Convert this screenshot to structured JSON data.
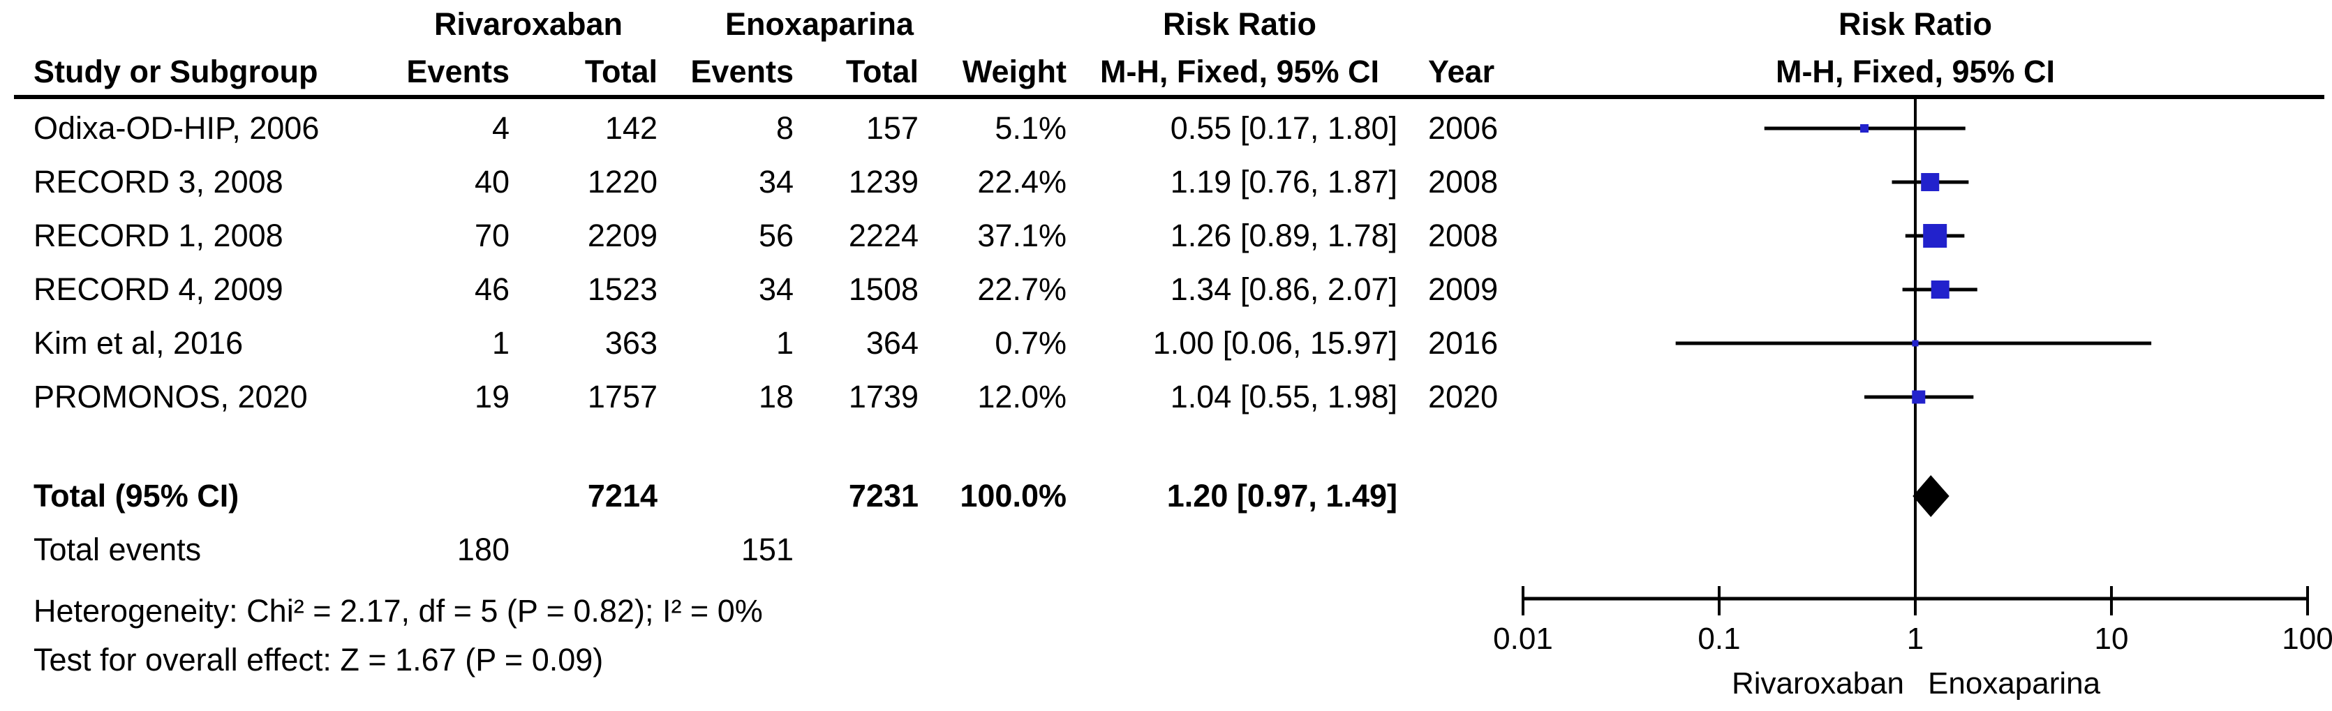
{
  "headers": {
    "group1": "Rivaroxaban",
    "group2": "Enoxaparina",
    "risk_ratio": "Risk Ratio",
    "study": "Study or Subgroup",
    "events": "Events",
    "total": "Total",
    "weight": "Weight",
    "mh_fixed": "M-H, Fixed, 95% CI",
    "year": "Year"
  },
  "studies": [
    {
      "name": "Odixa-OD-HIP, 2006",
      "events1": "4",
      "total1": "142",
      "events2": "8",
      "total2": "157",
      "weight": "5.1%",
      "ci": "0.55 [0.17, 1.80]",
      "year": "2006"
    },
    {
      "name": "RECORD 3, 2008",
      "events1": "40",
      "total1": "1220",
      "events2": "34",
      "total2": "1239",
      "weight": "22.4%",
      "ci": "1.19 [0.76, 1.87]",
      "year": "2008"
    },
    {
      "name": "RECORD 1, 2008",
      "events1": "70",
      "total1": "2209",
      "events2": "56",
      "total2": "2224",
      "weight": "37.1%",
      "ci": "1.26 [0.89, 1.78]",
      "year": "2008"
    },
    {
      "name": "RECORD 4, 2009",
      "events1": "46",
      "total1": "1523",
      "events2": "34",
      "total2": "1508",
      "weight": "22.7%",
      "ci": "1.34 [0.86, 2.07]",
      "year": "2009"
    },
    {
      "name": "Kim et al, 2016",
      "events1": "1",
      "total1": "363",
      "events2": "1",
      "total2": "364",
      "weight": "0.7%",
      "ci": "1.00 [0.06, 15.97]",
      "year": "2016"
    },
    {
      "name": "PROMONOS, 2020",
      "events1": "19",
      "total1": "1757",
      "events2": "18",
      "total2": "1739",
      "weight": "12.0%",
      "ci": "1.04 [0.55, 1.98]",
      "year": "2020"
    }
  ],
  "totals": {
    "label": "Total (95% CI)",
    "total1": "7214",
    "total2": "7231",
    "weight": "100.0%",
    "ci": "1.20 [0.97, 1.49]",
    "events_label": "Total events",
    "events1": "180",
    "events2": "151"
  },
  "footnotes": {
    "heterogeneity": "Heterogeneity: Chi² = 2.17, df = 5 (P = 0.82); I² = 0%",
    "overall_effect": "Test for overall effect: Z = 1.67 (P = 0.09)"
  },
  "chart_data": {
    "type": "forest",
    "title": "Risk Ratio",
    "method": "M-H, Fixed, 95% CI",
    "scale": "log10",
    "axis_ticks": [
      0.01,
      0.1,
      1,
      10,
      100
    ],
    "axis_tick_labels": [
      "0.01",
      "0.1",
      "1",
      "10",
      "100"
    ],
    "xlim": [
      0.01,
      100
    ],
    "xlabel_left": "Rivaroxaban",
    "xlabel_right": "Enoxaparina",
    "marker_color": "#2222CC",
    "line_color": "#000000",
    "points": [
      {
        "study": "Odixa-OD-HIP, 2006",
        "rr": 0.55,
        "lo": 0.17,
        "hi": 1.8,
        "weight_pct": 5.1
      },
      {
        "study": "RECORD 3, 2008",
        "rr": 1.19,
        "lo": 0.76,
        "hi": 1.87,
        "weight_pct": 22.4
      },
      {
        "study": "RECORD 1, 2008",
        "rr": 1.26,
        "lo": 0.89,
        "hi": 1.78,
        "weight_pct": 37.1
      },
      {
        "study": "RECORD 4, 2009",
        "rr": 1.34,
        "lo": 0.86,
        "hi": 2.07,
        "weight_pct": 22.7
      },
      {
        "study": "Kim et al, 2016",
        "rr": 1.0,
        "lo": 0.06,
        "hi": 15.97,
        "weight_pct": 0.7
      },
      {
        "study": "PROMONOS, 2020",
        "rr": 1.04,
        "lo": 0.55,
        "hi": 1.98,
        "weight_pct": 12.0
      }
    ],
    "diamond": {
      "label": "Total (95% CI)",
      "rr": 1.2,
      "lo": 0.97,
      "hi": 1.49
    }
  }
}
